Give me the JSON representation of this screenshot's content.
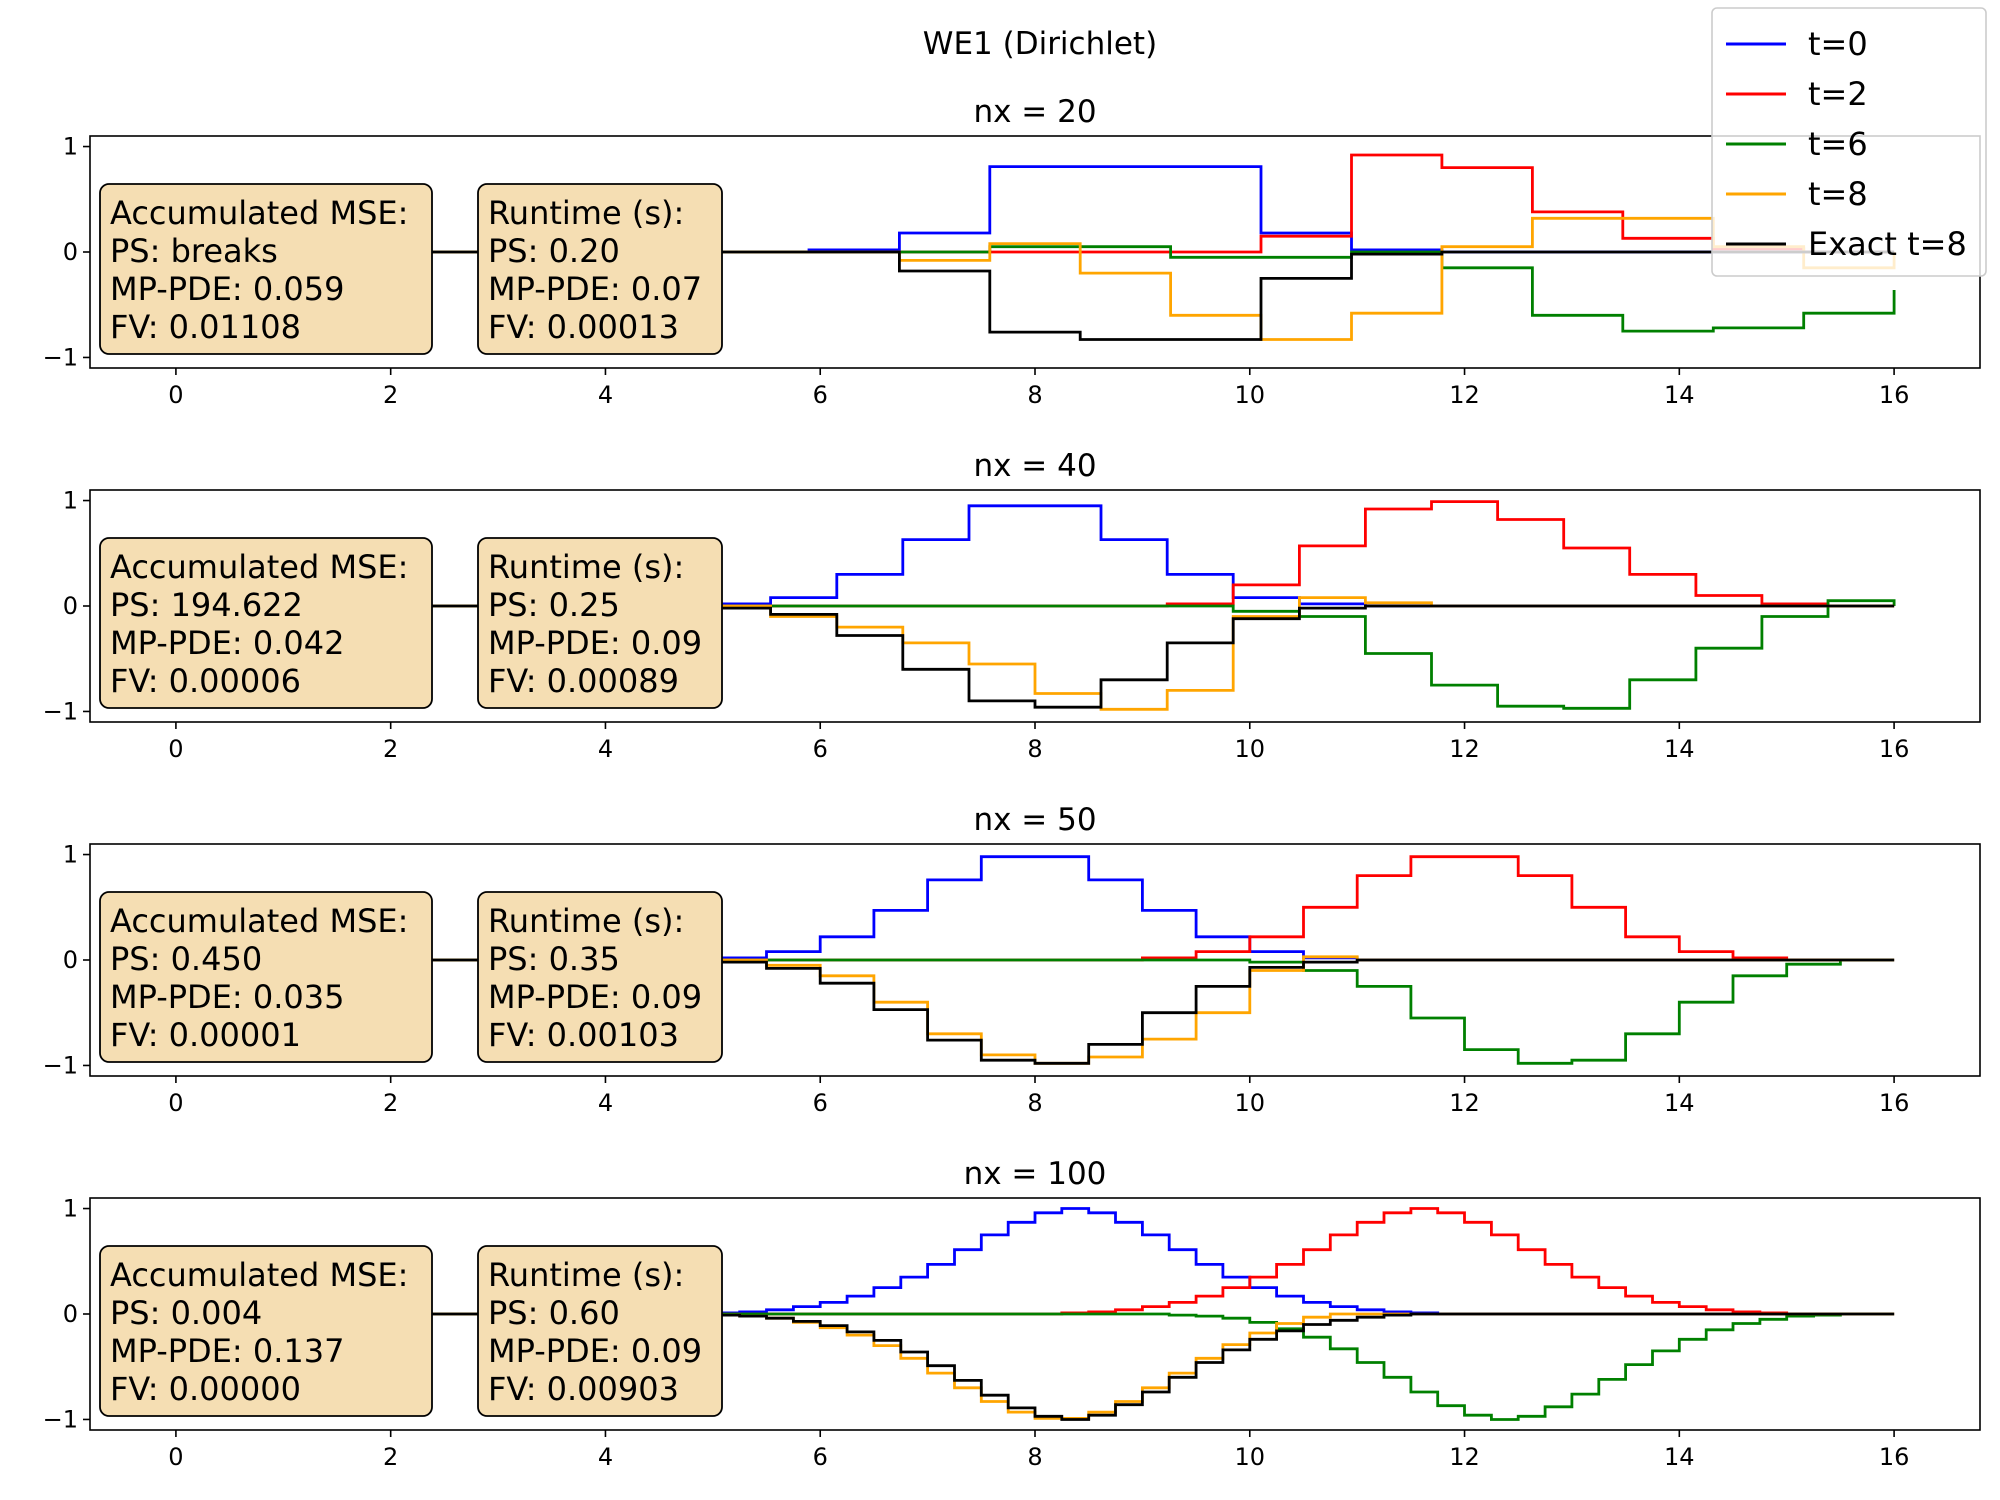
{
  "figure": {
    "suptitle": "WE1 (Dirichlet)"
  },
  "colors": {
    "t=0": "#0000ff",
    "t=2": "#ff0000",
    "t=6": "#008000",
    "t=8": "#ffa500",
    "Exact t=8": "#000000",
    "annotation_box": "#f5deb3"
  },
  "legend": {
    "placement": "top-right",
    "entries": [
      {
        "label": "t=0",
        "color": "#0000ff"
      },
      {
        "label": "t=2",
        "color": "#ff0000"
      },
      {
        "label": "t=6",
        "color": "#008000"
      },
      {
        "label": "t=8",
        "color": "#ffa500"
      },
      {
        "label": "Exact t=8",
        "color": "#000000"
      }
    ]
  },
  "chart_data": [
    {
      "type": "line",
      "title": "nx = 20",
      "xlim": [
        -0.8,
        16.8
      ],
      "ylim": [
        -1.1,
        1.1
      ],
      "xticks": [
        0,
        2,
        4,
        6,
        8,
        10,
        12,
        14,
        16
      ],
      "xtick_labels": [
        "0",
        "2",
        "4",
        "6",
        "8",
        "10",
        "12",
        "14",
        "16"
      ],
      "yticks": [
        -1,
        0,
        1
      ],
      "ytick_labels": [
        "−1",
        "0",
        "1"
      ],
      "mse_box": [
        "Accumulated MSE:",
        "PS: breaks",
        "MP-PDE: 0.059",
        "FV: 0.01108"
      ],
      "runtime_box": [
        "Runtime (s):",
        "PS: 0.20",
        "MP-PDE: 0.07",
        "FV: 0.00013"
      ],
      "x": [
        0,
        0.842,
        1.684,
        2.526,
        3.368,
        4.211,
        5.053,
        5.895,
        6.737,
        7.579,
        8.421,
        9.263,
        10.105,
        10.947,
        11.789,
        12.632,
        13.474,
        14.316,
        15.158,
        16.0
      ],
      "series": [
        {
          "name": "t=0",
          "values": [
            0,
            0,
            0,
            0,
            0,
            0,
            0,
            0.02,
            0.18,
            0.81,
            0.81,
            0.81,
            0.18,
            0.02,
            0,
            0,
            0,
            0,
            0,
            0
          ]
        },
        {
          "name": "t=2",
          "values": [
            0,
            0,
            0,
            0,
            0,
            0,
            0,
            0,
            0,
            0,
            0,
            0,
            0.15,
            0.92,
            0.8,
            0.38,
            0.13,
            0.03,
            0,
            0
          ]
        },
        {
          "name": "t=6",
          "values": [
            0,
            0,
            0,
            0,
            0,
            0,
            0,
            0,
            0,
            0.05,
            0.05,
            -0.05,
            -0.05,
            0,
            -0.15,
            -0.6,
            -0.75,
            -0.72,
            -0.58,
            -0.36
          ]
        },
        {
          "name": "t=8",
          "values": [
            0,
            0,
            0,
            0,
            0,
            0,
            0,
            0,
            -0.08,
            0.08,
            -0.2,
            -0.6,
            -0.83,
            -0.58,
            0.05,
            0.32,
            0.32,
            0.05,
            -0.15,
            0
          ]
        },
        {
          "name": "Exact t=8",
          "values": [
            0,
            0,
            0,
            0,
            0,
            0,
            0,
            0,
            -0.18,
            -0.76,
            -0.83,
            -0.83,
            -0.25,
            -0.02,
            0,
            0,
            0,
            0,
            0,
            0
          ]
        }
      ]
    },
    {
      "type": "line",
      "title": "nx = 40",
      "xlim": [
        -0.8,
        16.8
      ],
      "ylim": [
        -1.1,
        1.1
      ],
      "xticks": [
        0,
        2,
        4,
        6,
        8,
        10,
        12,
        14,
        16
      ],
      "xtick_labels": [
        "0",
        "2",
        "4",
        "6",
        "8",
        "10",
        "12",
        "14",
        "16"
      ],
      "yticks": [
        -1,
        0,
        1
      ],
      "ytick_labels": [
        "−1",
        "0",
        "1"
      ],
      "mse_box": [
        "Accumulated MSE:",
        "PS: 194.622",
        "MP-PDE: 0.042",
        "FV: 0.00006"
      ],
      "runtime_box": [
        "Runtime (s):",
        "PS: 0.25",
        "MP-PDE: 0.09",
        "FV: 0.00089"
      ],
      "x": [
        0,
        0.615,
        1.231,
        1.846,
        2.462,
        3.077,
        3.692,
        4.308,
        4.923,
        5.538,
        6.154,
        6.769,
        7.385,
        8.0,
        8.615,
        9.231,
        9.846,
        10.462,
        11.077,
        11.692,
        12.308,
        12.923,
        13.538,
        14.154,
        14.769,
        15.385,
        16.0
      ],
      "series": [
        {
          "name": "t=0",
          "values": [
            0,
            0,
            0,
            0,
            0,
            0,
            0,
            0,
            0.02,
            0.08,
            0.3,
            0.63,
            0.95,
            0.95,
            0.63,
            0.3,
            0.08,
            0.02,
            0,
            0,
            0,
            0,
            0,
            0,
            0,
            0,
            0
          ]
        },
        {
          "name": "t=2",
          "values": [
            0,
            0,
            0,
            0,
            0,
            0,
            0,
            0,
            0,
            0,
            0,
            0,
            0,
            0,
            0,
            0.02,
            0.2,
            0.57,
            0.92,
            0.99,
            0.82,
            0.55,
            0.3,
            0.1,
            0.02,
            0,
            0
          ]
        },
        {
          "name": "t=6",
          "values": [
            0,
            0,
            0,
            0,
            0,
            0,
            0,
            0,
            0,
            0,
            0,
            0,
            0,
            0,
            0,
            0,
            -0.05,
            -0.1,
            -0.45,
            -0.75,
            -0.95,
            -0.97,
            -0.7,
            -0.4,
            -0.1,
            0.05,
            0
          ]
        },
        {
          "name": "t=8",
          "values": [
            0,
            0,
            0,
            0,
            0,
            0,
            0,
            0,
            0,
            -0.1,
            -0.2,
            -0.35,
            -0.55,
            -0.83,
            -0.98,
            -0.8,
            -0.1,
            0.08,
            0.03,
            0,
            0,
            0,
            0,
            0,
            0,
            0,
            0
          ]
        },
        {
          "name": "Exact t=8",
          "values": [
            0,
            0,
            0,
            0,
            0,
            0,
            0,
            0,
            -0.02,
            -0.08,
            -0.28,
            -0.6,
            -0.9,
            -0.96,
            -0.7,
            -0.35,
            -0.12,
            -0.02,
            0,
            0,
            0,
            0,
            0,
            0,
            0,
            0,
            0
          ]
        }
      ]
    },
    {
      "type": "line",
      "title": "nx = 50",
      "xlim": [
        -0.8,
        16.8
      ],
      "ylim": [
        -1.1,
        1.1
      ],
      "xticks": [
        0,
        2,
        4,
        6,
        8,
        10,
        12,
        14,
        16
      ],
      "xtick_labels": [
        "0",
        "2",
        "4",
        "6",
        "8",
        "10",
        "12",
        "14",
        "16"
      ],
      "yticks": [
        -1,
        0,
        1
      ],
      "ytick_labels": [
        "−1",
        "0",
        "1"
      ],
      "mse_box": [
        "Accumulated MSE:",
        "PS: 0.450",
        "MP-PDE: 0.035",
        "FV: 0.00001"
      ],
      "runtime_box": [
        "Runtime (s):",
        "PS: 0.35",
        "MP-PDE: 0.09",
        "FV: 0.00103"
      ],
      "x": [
        0,
        0.5,
        1.0,
        1.5,
        2.0,
        2.5,
        3.0,
        3.5,
        4.0,
        4.5,
        5.0,
        5.5,
        6.0,
        6.5,
        7.0,
        7.5,
        8.0,
        8.5,
        9.0,
        9.5,
        10.0,
        10.5,
        11.0,
        11.5,
        12.0,
        12.5,
        13.0,
        13.5,
        14.0,
        14.5,
        15.0,
        15.5,
        16.0
      ],
      "series": [
        {
          "name": "t=0",
          "values": [
            0,
            0,
            0,
            0,
            0,
            0,
            0,
            0,
            0,
            0,
            0.02,
            0.08,
            0.22,
            0.47,
            0.76,
            0.98,
            0.98,
            0.76,
            0.47,
            0.22,
            0.08,
            0.02,
            0,
            0,
            0,
            0,
            0,
            0,
            0,
            0,
            0,
            0,
            0
          ]
        },
        {
          "name": "t=2",
          "values": [
            0,
            0,
            0,
            0,
            0,
            0,
            0,
            0,
            0,
            0,
            0,
            0,
            0,
            0,
            0,
            0,
            0,
            0,
            0.02,
            0.08,
            0.22,
            0.5,
            0.8,
            0.98,
            0.98,
            0.8,
            0.5,
            0.22,
            0.08,
            0.02,
            0,
            0,
            0
          ]
        },
        {
          "name": "t=6",
          "values": [
            0,
            0,
            0,
            0,
            0,
            0,
            0,
            0,
            0,
            0,
            0,
            0,
            0,
            0,
            0,
            0,
            0,
            0,
            0,
            0,
            -0.02,
            -0.1,
            -0.25,
            -0.55,
            -0.85,
            -0.98,
            -0.95,
            -0.7,
            -0.4,
            -0.15,
            -0.04,
            0,
            0
          ]
        },
        {
          "name": "t=8",
          "values": [
            0,
            0,
            0,
            0,
            0,
            0,
            0,
            0,
            0,
            0,
            0,
            -0.05,
            -0.15,
            -0.4,
            -0.7,
            -0.9,
            -0.98,
            -0.92,
            -0.75,
            -0.5,
            -0.1,
            0.03,
            0,
            0,
            0,
            0,
            0,
            0,
            0,
            0,
            0,
            0,
            0
          ]
        },
        {
          "name": "Exact t=8",
          "values": [
            0,
            0,
            0,
            0,
            0,
            0,
            0,
            0,
            0,
            0,
            -0.02,
            -0.08,
            -0.22,
            -0.47,
            -0.76,
            -0.95,
            -0.98,
            -0.8,
            -0.5,
            -0.25,
            -0.07,
            -0.02,
            0,
            0,
            0,
            0,
            0,
            0,
            0,
            0,
            0,
            0,
            0
          ]
        }
      ]
    },
    {
      "type": "line",
      "title": "nx = 100",
      "xlim": [
        -0.8,
        16.8
      ],
      "ylim": [
        -1.1,
        1.1
      ],
      "xticks": [
        0,
        2,
        4,
        6,
        8,
        10,
        12,
        14,
        16
      ],
      "xtick_labels": [
        "0",
        "2",
        "4",
        "6",
        "8",
        "10",
        "12",
        "14",
        "16"
      ],
      "yticks": [
        -1,
        0,
        1
      ],
      "ytick_labels": [
        "−1",
        "0",
        "1"
      ],
      "mse_box": [
        "Accumulated MSE:",
        "PS: 0.004",
        "MP-PDE: 0.137",
        "FV: 0.00000"
      ],
      "runtime_box": [
        "Runtime (s):",
        "PS: 0.60",
        "MP-PDE: 0.09",
        "FV: 0.00903"
      ],
      "x": [
        0,
        0.25,
        0.5,
        0.75,
        1.0,
        1.25,
        1.5,
        1.75,
        2.0,
        2.25,
        2.5,
        2.75,
        3.0,
        3.25,
        3.5,
        3.75,
        4.0,
        4.25,
        4.5,
        4.75,
        5.0,
        5.25,
        5.5,
        5.75,
        6.0,
        6.25,
        6.5,
        6.75,
        7.0,
        7.25,
        7.5,
        7.75,
        8.0,
        8.25,
        8.5,
        8.75,
        9.0,
        9.25,
        9.5,
        9.75,
        10.0,
        10.25,
        10.5,
        10.75,
        11.0,
        11.25,
        11.5,
        11.75,
        12.0,
        12.25,
        12.5,
        12.75,
        13.0,
        13.25,
        13.5,
        13.75,
        14.0,
        14.25,
        14.5,
        14.75,
        15.0,
        15.25,
        15.5,
        15.75,
        16.0
      ],
      "series": [
        {
          "name": "t=0",
          "values": [
            0,
            0,
            0,
            0,
            0,
            0,
            0,
            0,
            0,
            0,
            0,
            0,
            0,
            0,
            0,
            0,
            0,
            0,
            0,
            0,
            0.01,
            0.02,
            0.04,
            0.07,
            0.11,
            0.17,
            0.25,
            0.35,
            0.47,
            0.61,
            0.75,
            0.87,
            0.96,
            1.0,
            0.96,
            0.87,
            0.75,
            0.61,
            0.47,
            0.35,
            0.25,
            0.17,
            0.11,
            0.07,
            0.04,
            0.02,
            0.01,
            0,
            0,
            0,
            0,
            0,
            0,
            0,
            0,
            0,
            0,
            0,
            0,
            0,
            0,
            0,
            0,
            0,
            0
          ]
        },
        {
          "name": "t=2",
          "values": [
            0,
            0,
            0,
            0,
            0,
            0,
            0,
            0,
            0,
            0,
            0,
            0,
            0,
            0,
            0,
            0,
            0,
            0,
            0,
            0,
            0,
            0,
            0,
            0,
            0,
            0,
            0,
            0,
            0,
            0,
            0,
            0,
            0,
            0.01,
            0.02,
            0.04,
            0.07,
            0.11,
            0.17,
            0.25,
            0.35,
            0.47,
            0.61,
            0.75,
            0.87,
            0.96,
            1.0,
            0.96,
            0.87,
            0.75,
            0.61,
            0.47,
            0.35,
            0.25,
            0.17,
            0.11,
            0.07,
            0.04,
            0.02,
            0.01,
            0,
            0,
            0,
            0,
            0
          ]
        },
        {
          "name": "t=6",
          "values": [
            0,
            0,
            0,
            0,
            0,
            0,
            0,
            0,
            0,
            0,
            0,
            0,
            0,
            0,
            0,
            0,
            0,
            0,
            0,
            0,
            0,
            0,
            0,
            0,
            0,
            0,
            0,
            0,
            0,
            0,
            0,
            0,
            0,
            0,
            0,
            0,
            0,
            -0.01,
            -0.02,
            -0.04,
            -0.08,
            -0.14,
            -0.22,
            -0.33,
            -0.46,
            -0.6,
            -0.74,
            -0.87,
            -0.96,
            -1.0,
            -0.97,
            -0.88,
            -0.76,
            -0.62,
            -0.48,
            -0.35,
            -0.24,
            -0.15,
            -0.09,
            -0.05,
            -0.02,
            -0.01,
            0,
            0,
            0
          ]
        },
        {
          "name": "t=8",
          "values": [
            0,
            0,
            0,
            0,
            0,
            0,
            0,
            0,
            0,
            0,
            0,
            0,
            0,
            0,
            0,
            0,
            0,
            0,
            0,
            0,
            -0.01,
            -0.02,
            -0.04,
            -0.08,
            -0.13,
            -0.2,
            -0.3,
            -0.42,
            -0.56,
            -0.7,
            -0.83,
            -0.93,
            -0.99,
            -0.99,
            -0.93,
            -0.83,
            -0.7,
            -0.56,
            -0.42,
            -0.29,
            -0.18,
            -0.09,
            -0.03,
            0,
            0,
            0,
            0,
            0,
            0,
            0,
            0,
            0,
            0,
            0,
            0,
            0,
            0,
            0,
            0,
            0,
            0,
            0,
            0,
            0,
            0
          ]
        },
        {
          "name": "Exact t=8",
          "values": [
            0,
            0,
            0,
            0,
            0,
            0,
            0,
            0,
            0,
            0,
            0,
            0,
            0,
            0,
            0,
            0,
            0,
            0,
            0,
            0,
            -0.01,
            -0.02,
            -0.04,
            -0.07,
            -0.11,
            -0.17,
            -0.25,
            -0.36,
            -0.49,
            -0.63,
            -0.77,
            -0.89,
            -0.97,
            -1.0,
            -0.96,
            -0.86,
            -0.74,
            -0.6,
            -0.46,
            -0.34,
            -0.24,
            -0.16,
            -0.1,
            -0.06,
            -0.03,
            -0.01,
            0,
            0,
            0,
            0,
            0,
            0,
            0,
            0,
            0,
            0,
            0,
            0,
            0,
            0,
            0,
            0,
            0,
            0,
            0
          ]
        }
      ]
    }
  ]
}
